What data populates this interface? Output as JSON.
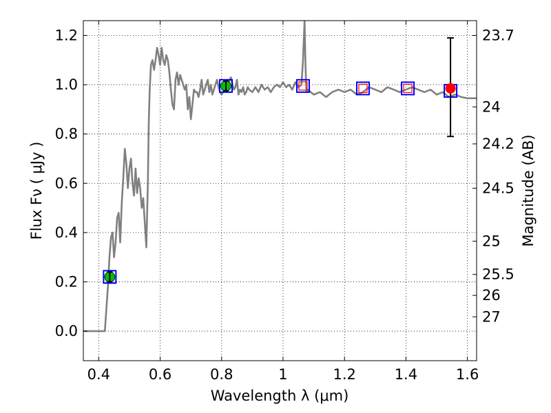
{
  "chart_data": {
    "type": "line",
    "xlabel": "Wavelength  λ (μm)",
    "ylabel": "Flux  Fν ( μJy )",
    "y2label": "Magnitude (AB)",
    "xlim": [
      0.35,
      1.63
    ],
    "ylim": [
      -0.12,
      1.26
    ],
    "grid": true,
    "x_ticks": [
      0.4,
      0.6,
      0.8,
      1.0,
      1.2,
      1.4,
      1.6
    ],
    "x_tick_labels": [
      "0.4",
      "0.6",
      "0.8",
      "1",
      "1.2",
      "1.4",
      "1.6"
    ],
    "y_ticks": [
      0.0,
      0.2,
      0.4,
      0.6,
      0.8,
      1.0,
      1.2
    ],
    "y_tick_labels": [
      "0.0",
      "0.2",
      "0.4",
      "0.6",
      "0.8",
      "1.0",
      "1.2"
    ],
    "y2_ticks": [
      {
        "label": "23.7",
        "flux": 1.2
      },
      {
        "label": "24",
        "flux": 0.91
      },
      {
        "label": "24.2",
        "flux": 0.76
      },
      {
        "label": "24.5",
        "flux": 0.58
      },
      {
        "label": "25",
        "flux": 0.365
      },
      {
        "label": "25.5",
        "flux": 0.23
      },
      {
        "label": "26",
        "flux": 0.145
      },
      {
        "label": "27",
        "flux": 0.058
      }
    ],
    "series": [
      {
        "kind": "spectrum",
        "color": "#808080",
        "x": [
          0.35,
          0.42,
          0.43,
          0.435,
          0.44,
          0.445,
          0.45,
          0.455,
          0.46,
          0.465,
          0.47,
          0.475,
          0.48,
          0.485,
          0.49,
          0.495,
          0.5,
          0.505,
          0.51,
          0.515,
          0.52,
          0.525,
          0.53,
          0.535,
          0.54,
          0.545,
          0.55,
          0.555,
          0.56,
          0.563,
          0.566,
          0.57,
          0.575,
          0.58,
          0.585,
          0.59,
          0.595,
          0.6,
          0.605,
          0.61,
          0.615,
          0.62,
          0.625,
          0.63,
          0.635,
          0.64,
          0.645,
          0.65,
          0.655,
          0.66,
          0.665,
          0.67,
          0.675,
          0.68,
          0.685,
          0.69,
          0.695,
          0.7,
          0.705,
          0.71,
          0.715,
          0.72,
          0.725,
          0.73,
          0.735,
          0.74,
          0.745,
          0.75,
          0.755,
          0.76,
          0.765,
          0.77,
          0.775,
          0.78,
          0.785,
          0.79,
          0.795,
          0.8,
          0.81,
          0.82,
          0.83,
          0.84,
          0.845,
          0.85,
          0.855,
          0.86,
          0.865,
          0.87,
          0.875,
          0.88,
          0.885,
          0.89,
          0.9,
          0.91,
          0.92,
          0.93,
          0.94,
          0.95,
          0.96,
          0.97,
          0.98,
          0.99,
          1.0,
          1.01,
          1.02,
          1.03,
          1.04,
          1.05,
          1.06,
          1.065,
          1.07,
          1.073,
          1.076,
          1.08,
          1.09,
          1.1,
          1.12,
          1.14,
          1.16,
          1.18,
          1.2,
          1.22,
          1.24,
          1.26,
          1.28,
          1.3,
          1.32,
          1.34,
          1.36,
          1.38,
          1.4,
          1.42,
          1.44,
          1.46,
          1.48,
          1.5,
          1.52,
          1.54,
          1.56,
          1.58,
          1.6,
          1.63
        ],
        "y": [
          0.0,
          0.0,
          0.18,
          0.3,
          0.38,
          0.4,
          0.3,
          0.36,
          0.46,
          0.48,
          0.36,
          0.52,
          0.62,
          0.74,
          0.68,
          0.58,
          0.66,
          0.7,
          0.6,
          0.55,
          0.66,
          0.56,
          0.62,
          0.58,
          0.5,
          0.54,
          0.44,
          0.34,
          0.6,
          0.85,
          0.98,
          1.08,
          1.1,
          1.06,
          1.1,
          1.15,
          1.12,
          1.08,
          1.15,
          1.1,
          1.08,
          1.12,
          1.1,
          1.05,
          0.98,
          0.92,
          0.9,
          1.02,
          1.05,
          1.0,
          1.04,
          1.02,
          1.0,
          0.98,
          1.0,
          0.9,
          0.95,
          0.86,
          0.92,
          0.98,
          0.97,
          0.97,
          0.95,
          0.98,
          1.02,
          0.96,
          0.98,
          1.0,
          1.02,
          0.97,
          1.0,
          0.96,
          0.98,
          1.0,
          1.02,
          0.99,
          0.97,
          0.96,
          0.98,
          1.0,
          1.03,
          0.98,
          0.99,
          1.02,
          0.96,
          0.98,
          0.97,
          0.99,
          0.96,
          0.97,
          0.99,
          0.98,
          0.97,
          0.99,
          0.97,
          1.0,
          0.98,
          0.99,
          0.97,
          0.99,
          1.0,
          0.99,
          1.01,
          0.99,
          1.0,
          0.98,
          1.01,
          0.99,
          1.0,
          1.1,
          1.26,
          1.08,
          0.97,
          0.98,
          0.97,
          0.96,
          0.97,
          0.95,
          0.97,
          0.98,
          0.97,
          0.98,
          0.96,
          0.97,
          0.99,
          0.98,
          0.97,
          0.99,
          0.98,
          0.97,
          0.98,
          0.99,
          0.98,
          0.97,
          0.98,
          0.96,
          0.97,
          0.95,
          0.96,
          0.95,
          0.945,
          0.945
        ]
      },
      {
        "kind": "points",
        "points": [
          {
            "x": 0.436,
            "y": 0.22,
            "marker": "green-circle",
            "err": 0.02,
            "box": true
          },
          {
            "x": 0.814,
            "y": 0.995,
            "marker": "green-circle",
            "err": 0.02,
            "box": true
          },
          {
            "x": 1.065,
            "y": 0.995,
            "marker": "red-square",
            "box": true
          },
          {
            "x": 1.26,
            "y": 0.985,
            "marker": "red-square",
            "box": true
          },
          {
            "x": 1.406,
            "y": 0.985,
            "marker": "red-square",
            "box": true
          },
          {
            "x": 1.545,
            "y": 0.975,
            "marker": "blue-square",
            "box": true
          },
          {
            "x": 1.545,
            "y": 0.985,
            "marker": "red-circle",
            "err_low": 0.79,
            "err_high": 1.19
          }
        ]
      }
    ],
    "colors": {
      "spectrum": "#808080",
      "green": "#00bf00",
      "red": "#ff0000",
      "blue": "#0000ff"
    }
  }
}
